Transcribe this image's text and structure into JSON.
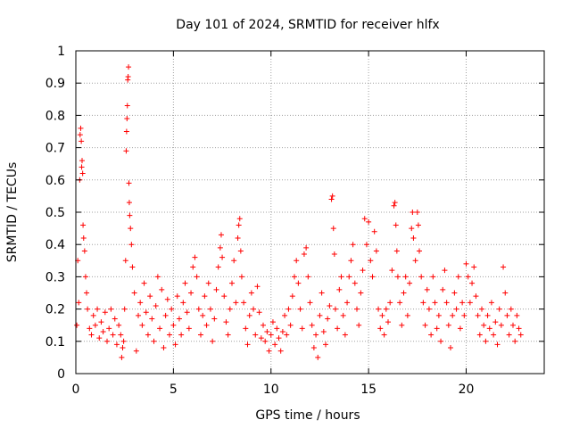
{
  "chart_data": {
    "type": "scatter",
    "title": "Day 101 of 2024, SRMTID for receiver hlfx",
    "xlabel": "GPS time / hours",
    "ylabel": "SRMTID / TECUs",
    "xlim": [
      0,
      24
    ],
    "ylim": [
      0,
      1
    ],
    "xticks": [
      0,
      5,
      10,
      15,
      20
    ],
    "xtick_labels": [
      "0",
      "5",
      "10",
      "15",
      "20"
    ],
    "yticks": [
      0,
      0.1,
      0.2,
      0.3,
      0.4,
      0.5,
      0.6,
      0.7,
      0.8,
      0.9,
      1
    ],
    "ytick_labels": [
      "0",
      "0.1",
      "0.2",
      "0.3",
      "0.4",
      "0.5",
      "0.6",
      "0.7",
      "0.8",
      "0.9",
      "1"
    ],
    "grid": true,
    "marker": "+",
    "color": "#ff0000",
    "series": [
      {
        "name": "SRMTID",
        "points": [
          [
            0.05,
            0.15
          ],
          [
            0.1,
            0.35
          ],
          [
            0.15,
            0.22
          ],
          [
            0.2,
            0.6
          ],
          [
            0.22,
            0.74
          ],
          [
            0.25,
            0.76
          ],
          [
            0.28,
            0.72
          ],
          [
            0.3,
            0.64
          ],
          [
            0.32,
            0.66
          ],
          [
            0.35,
            0.62
          ],
          [
            0.37,
            0.46
          ],
          [
            0.4,
            0.42
          ],
          [
            0.45,
            0.38
          ],
          [
            0.5,
            0.3
          ],
          [
            0.55,
            0.25
          ],
          [
            0.6,
            0.2
          ],
          [
            0.7,
            0.14
          ],
          [
            0.8,
            0.12
          ],
          [
            0.9,
            0.18
          ],
          [
            1.0,
            0.15
          ],
          [
            1.1,
            0.2
          ],
          [
            1.2,
            0.11
          ],
          [
            1.3,
            0.16
          ],
          [
            1.4,
            0.13
          ],
          [
            1.5,
            0.19
          ],
          [
            1.6,
            0.1
          ],
          [
            1.7,
            0.14
          ],
          [
            1.8,
            0.2
          ],
          [
            1.9,
            0.12
          ],
          [
            2.0,
            0.17
          ],
          [
            2.1,
            0.09
          ],
          [
            2.2,
            0.15
          ],
          [
            2.3,
            0.12
          ],
          [
            2.35,
            0.05
          ],
          [
            2.4,
            0.08
          ],
          [
            2.45,
            0.1
          ],
          [
            2.5,
            0.2
          ],
          [
            2.55,
            0.35
          ],
          [
            2.58,
            0.69
          ],
          [
            2.6,
            0.75
          ],
          [
            2.62,
            0.79
          ],
          [
            2.64,
            0.83
          ],
          [
            2.66,
            0.91
          ],
          [
            2.68,
            0.92
          ],
          [
            2.7,
            0.95
          ],
          [
            2.72,
            0.59
          ],
          [
            2.74,
            0.53
          ],
          [
            2.76,
            0.49
          ],
          [
            2.8,
            0.45
          ],
          [
            2.85,
            0.4
          ],
          [
            2.9,
            0.33
          ],
          [
            3.0,
            0.25
          ],
          [
            3.1,
            0.07
          ],
          [
            3.2,
            0.18
          ],
          [
            3.3,
            0.22
          ],
          [
            3.4,
            0.15
          ],
          [
            3.5,
            0.28
          ],
          [
            3.6,
            0.19
          ],
          [
            3.7,
            0.12
          ],
          [
            3.8,
            0.24
          ],
          [
            3.9,
            0.17
          ],
          [
            4.0,
            0.1
          ],
          [
            4.1,
            0.21
          ],
          [
            4.2,
            0.3
          ],
          [
            4.3,
            0.14
          ],
          [
            4.4,
            0.26
          ],
          [
            4.5,
            0.08
          ],
          [
            4.6,
            0.18
          ],
          [
            4.7,
            0.23
          ],
          [
            4.8,
            0.12
          ],
          [
            4.9,
            0.2
          ],
          [
            5.0,
            0.15
          ],
          [
            5.1,
            0.09
          ],
          [
            5.2,
            0.24
          ],
          [
            5.3,
            0.17
          ],
          [
            5.4,
            0.12
          ],
          [
            5.5,
            0.22
          ],
          [
            5.6,
            0.28
          ],
          [
            5.7,
            0.19
          ],
          [
            5.8,
            0.14
          ],
          [
            5.9,
            0.25
          ],
          [
            6.0,
            0.33
          ],
          [
            6.1,
            0.36
          ],
          [
            6.2,
            0.3
          ],
          [
            6.3,
            0.2
          ],
          [
            6.4,
            0.12
          ],
          [
            6.5,
            0.18
          ],
          [
            6.6,
            0.24
          ],
          [
            6.7,
            0.15
          ],
          [
            6.8,
            0.28
          ],
          [
            6.9,
            0.2
          ],
          [
            7.0,
            0.1
          ],
          [
            7.1,
            0.17
          ],
          [
            7.2,
            0.26
          ],
          [
            7.3,
            0.33
          ],
          [
            7.4,
            0.39
          ],
          [
            7.45,
            0.43
          ],
          [
            7.5,
            0.36
          ],
          [
            7.6,
            0.24
          ],
          [
            7.7,
            0.16
          ],
          [
            7.8,
            0.12
          ],
          [
            7.9,
            0.2
          ],
          [
            8.0,
            0.28
          ],
          [
            8.1,
            0.35
          ],
          [
            8.2,
            0.22
          ],
          [
            8.3,
            0.42
          ],
          [
            8.35,
            0.46
          ],
          [
            8.4,
            0.48
          ],
          [
            8.45,
            0.38
          ],
          [
            8.5,
            0.3
          ],
          [
            8.6,
            0.22
          ],
          [
            8.7,
            0.14
          ],
          [
            8.8,
            0.09
          ],
          [
            8.9,
            0.18
          ],
          [
            9.0,
            0.25
          ],
          [
            9.1,
            0.2
          ],
          [
            9.2,
            0.12
          ],
          [
            9.3,
            0.27
          ],
          [
            9.4,
            0.19
          ],
          [
            9.5,
            0.11
          ],
          [
            9.6,
            0.15
          ],
          [
            9.7,
            0.1
          ],
          [
            9.8,
            0.13
          ],
          [
            9.9,
            0.07
          ],
          [
            10.0,
            0.12
          ],
          [
            10.1,
            0.16
          ],
          [
            10.2,
            0.09
          ],
          [
            10.3,
            0.14
          ],
          [
            10.4,
            0.11
          ],
          [
            10.5,
            0.07
          ],
          [
            10.6,
            0.13
          ],
          [
            10.7,
            0.18
          ],
          [
            10.8,
            0.12
          ],
          [
            10.9,
            0.2
          ],
          [
            11.0,
            0.15
          ],
          [
            11.1,
            0.24
          ],
          [
            11.2,
            0.3
          ],
          [
            11.3,
            0.35
          ],
          [
            11.4,
            0.28
          ],
          [
            11.5,
            0.2
          ],
          [
            11.6,
            0.14
          ],
          [
            11.7,
            0.37
          ],
          [
            11.8,
            0.39
          ],
          [
            11.9,
            0.3
          ],
          [
            12.0,
            0.22
          ],
          [
            12.1,
            0.15
          ],
          [
            12.2,
            0.08
          ],
          [
            12.3,
            0.12
          ],
          [
            12.4,
            0.05
          ],
          [
            12.5,
            0.18
          ],
          [
            12.6,
            0.25
          ],
          [
            12.7,
            0.13
          ],
          [
            12.8,
            0.09
          ],
          [
            12.9,
            0.17
          ],
          [
            13.0,
            0.21
          ],
          [
            13.1,
            0.54
          ],
          [
            13.15,
            0.55
          ],
          [
            13.2,
            0.45
          ],
          [
            13.25,
            0.37
          ],
          [
            13.3,
            0.2
          ],
          [
            13.4,
            0.14
          ],
          [
            13.5,
            0.26
          ],
          [
            13.6,
            0.3
          ],
          [
            13.7,
            0.18
          ],
          [
            13.8,
            0.12
          ],
          [
            13.9,
            0.22
          ],
          [
            14.0,
            0.3
          ],
          [
            14.1,
            0.35
          ],
          [
            14.2,
            0.4
          ],
          [
            14.3,
            0.28
          ],
          [
            14.4,
            0.2
          ],
          [
            14.5,
            0.15
          ],
          [
            14.6,
            0.25
          ],
          [
            14.7,
            0.32
          ],
          [
            14.8,
            0.48
          ],
          [
            14.9,
            0.4
          ],
          [
            15.0,
            0.47
          ],
          [
            15.1,
            0.35
          ],
          [
            15.2,
            0.3
          ],
          [
            15.3,
            0.44
          ],
          [
            15.4,
            0.38
          ],
          [
            15.5,
            0.2
          ],
          [
            15.6,
            0.14
          ],
          [
            15.7,
            0.18
          ],
          [
            15.8,
            0.12
          ],
          [
            15.9,
            0.2
          ],
          [
            16.0,
            0.16
          ],
          [
            16.1,
            0.22
          ],
          [
            16.2,
            0.32
          ],
          [
            16.3,
            0.52
          ],
          [
            16.35,
            0.53
          ],
          [
            16.4,
            0.46
          ],
          [
            16.45,
            0.38
          ],
          [
            16.5,
            0.3
          ],
          [
            16.6,
            0.22
          ],
          [
            16.7,
            0.15
          ],
          [
            16.8,
            0.25
          ],
          [
            16.9,
            0.3
          ],
          [
            17.0,
            0.18
          ],
          [
            17.1,
            0.28
          ],
          [
            17.2,
            0.45
          ],
          [
            17.25,
            0.5
          ],
          [
            17.3,
            0.42
          ],
          [
            17.4,
            0.35
          ],
          [
            17.5,
            0.5
          ],
          [
            17.55,
            0.46
          ],
          [
            17.6,
            0.38
          ],
          [
            17.7,
            0.3
          ],
          [
            17.8,
            0.22
          ],
          [
            17.9,
            0.15
          ],
          [
            18.0,
            0.26
          ],
          [
            18.1,
            0.2
          ],
          [
            18.2,
            0.12
          ],
          [
            18.3,
            0.3
          ],
          [
            18.4,
            0.22
          ],
          [
            18.5,
            0.14
          ],
          [
            18.6,
            0.18
          ],
          [
            18.7,
            0.1
          ],
          [
            18.8,
            0.26
          ],
          [
            18.9,
            0.32
          ],
          [
            19.0,
            0.22
          ],
          [
            19.1,
            0.15
          ],
          [
            19.2,
            0.08
          ],
          [
            19.3,
            0.18
          ],
          [
            19.4,
            0.25
          ],
          [
            19.5,
            0.2
          ],
          [
            19.6,
            0.3
          ],
          [
            19.7,
            0.14
          ],
          [
            19.8,
            0.22
          ],
          [
            19.9,
            0.18
          ],
          [
            20.0,
            0.34
          ],
          [
            20.1,
            0.3
          ],
          [
            20.2,
            0.22
          ],
          [
            20.3,
            0.28
          ],
          [
            20.4,
            0.33
          ],
          [
            20.5,
            0.24
          ],
          [
            20.6,
            0.18
          ],
          [
            20.7,
            0.12
          ],
          [
            20.8,
            0.2
          ],
          [
            20.9,
            0.15
          ],
          [
            21.0,
            0.1
          ],
          [
            21.1,
            0.18
          ],
          [
            21.2,
            0.14
          ],
          [
            21.3,
            0.22
          ],
          [
            21.4,
            0.12
          ],
          [
            21.5,
            0.16
          ],
          [
            21.6,
            0.09
          ],
          [
            21.7,
            0.2
          ],
          [
            21.8,
            0.15
          ],
          [
            21.9,
            0.33
          ],
          [
            22.0,
            0.25
          ],
          [
            22.1,
            0.18
          ],
          [
            22.2,
            0.12
          ],
          [
            22.3,
            0.2
          ],
          [
            22.4,
            0.15
          ],
          [
            22.5,
            0.1
          ],
          [
            22.6,
            0.18
          ],
          [
            22.7,
            0.14
          ],
          [
            22.8,
            0.12
          ]
        ]
      }
    ]
  }
}
